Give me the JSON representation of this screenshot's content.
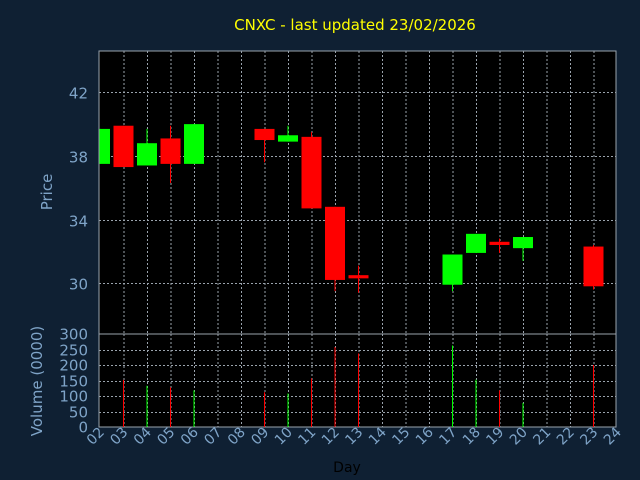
{
  "title": "CNXC - last updated 23/02/2026",
  "colors": {
    "background": "#0f2033",
    "plot_background": "#000000",
    "grid": "#9aa3ad",
    "axis_text": "#7fa4c8",
    "title": "#ffff00",
    "up": "#00ff00",
    "down": "#ff0000",
    "xlabel": "#000000"
  },
  "chart_data": [
    {
      "type": "candlestick",
      "ylabel": "Price",
      "ylim": [
        26.8,
        44.6
      ],
      "yticks": [
        30,
        34,
        38,
        42
      ],
      "grid": true,
      "candles": [
        {
          "day": 2,
          "open": 37.5,
          "high": 39.7,
          "low": 37.5,
          "close": 39.7,
          "dir": "up"
        },
        {
          "day": 3,
          "open": 39.9,
          "high": 39.9,
          "low": 37.3,
          "close": 37.3,
          "dir": "down"
        },
        {
          "day": 4,
          "open": 37.4,
          "high": 39.7,
          "low": 37.4,
          "close": 38.8,
          "dir": "up"
        },
        {
          "day": 5,
          "open": 39.1,
          "high": 39.9,
          "low": 36.3,
          "close": 37.5,
          "dir": "down"
        },
        {
          "day": 6,
          "open": 37.5,
          "high": 40.0,
          "low": 37.5,
          "close": 40.0,
          "dir": "up"
        },
        {
          "day": 9,
          "open": 39.7,
          "high": 39.7,
          "low": 37.6,
          "close": 39.0,
          "dir": "down"
        },
        {
          "day": 10,
          "open": 38.9,
          "high": 39.9,
          "low": 38.9,
          "close": 39.3,
          "dir": "up"
        },
        {
          "day": 11,
          "open": 39.2,
          "high": 39.5,
          "low": 34.7,
          "close": 34.7,
          "dir": "down"
        },
        {
          "day": 12,
          "open": 34.8,
          "high": 34.8,
          "low": 29.5,
          "close": 30.2,
          "dir": "down"
        },
        {
          "day": 13,
          "open": 30.5,
          "high": 31.1,
          "low": 29.4,
          "close": 30.3,
          "dir": "down"
        },
        {
          "day": 17,
          "open": 29.9,
          "high": 31.8,
          "low": 29.5,
          "close": 31.8,
          "dir": "up"
        },
        {
          "day": 18,
          "open": 31.9,
          "high": 33.1,
          "low": 31.9,
          "close": 33.1,
          "dir": "up"
        },
        {
          "day": 19,
          "open": 32.6,
          "high": 32.8,
          "low": 31.9,
          "close": 32.4,
          "dir": "down"
        },
        {
          "day": 20,
          "open": 32.2,
          "high": 32.9,
          "low": 31.4,
          "close": 32.9,
          "dir": "up"
        },
        {
          "day": 23,
          "open": 32.3,
          "high": 32.4,
          "low": 29.6,
          "close": 29.8,
          "dir": "down"
        }
      ]
    },
    {
      "type": "bar",
      "ylabel": "Volume (0000)",
      "ylim": [
        0,
        300
      ],
      "yticks": [
        0,
        50,
        100,
        150,
        200,
        250,
        300
      ],
      "xlabel": "Day",
      "x_ticks": [
        "02",
        "03",
        "04",
        "05",
        "06",
        "07",
        "08",
        "09",
        "10",
        "11",
        "12",
        "13",
        "14",
        "15",
        "16",
        "17",
        "18",
        "19",
        "20",
        "21",
        "22",
        "23",
        "24"
      ],
      "bars": [
        {
          "day": 3,
          "value": 152,
          "dir": "down"
        },
        {
          "day": 4,
          "value": 133,
          "dir": "up"
        },
        {
          "day": 5,
          "value": 128,
          "dir": "down"
        },
        {
          "day": 6,
          "value": 118,
          "dir": "up"
        },
        {
          "day": 9,
          "value": 112,
          "dir": "down"
        },
        {
          "day": 10,
          "value": 108,
          "dir": "up"
        },
        {
          "day": 11,
          "value": 157,
          "dir": "down"
        },
        {
          "day": 12,
          "value": 258,
          "dir": "down"
        },
        {
          "day": 13,
          "value": 237,
          "dir": "down"
        },
        {
          "day": 17,
          "value": 263,
          "dir": "up"
        },
        {
          "day": 18,
          "value": 153,
          "dir": "up"
        },
        {
          "day": 19,
          "value": 118,
          "dir": "down"
        },
        {
          "day": 20,
          "value": 78,
          "dir": "up"
        },
        {
          "day": 23,
          "value": 200,
          "dir": "down"
        }
      ]
    }
  ]
}
